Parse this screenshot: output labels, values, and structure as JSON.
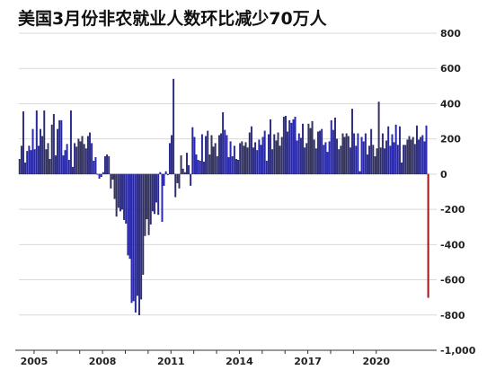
{
  "chart_data": {
    "type": "bar",
    "title": "美国3月份非农就业人数环比减少70万人",
    "xlabel": "",
    "ylabel": "",
    "ylim": [
      -1000,
      800
    ],
    "y_ticks": [
      800,
      600,
      400,
      200,
      0,
      -200,
      -400,
      -600,
      -800,
      -1000
    ],
    "y_tick_labels": [
      "800",
      "600",
      "400",
      "200",
      "0",
      "-200",
      "-400",
      "-600",
      "-800",
      "-1,000"
    ],
    "x_tick_labels": [
      "2005",
      "2008",
      "2011",
      "2014",
      "2017",
      "2020"
    ],
    "x_tick_years": [
      2005,
      2008,
      2011,
      2014,
      2017,
      2020
    ],
    "x_start": "2004-05",
    "grid": true,
    "colors": {
      "positive": "#2b2bb0",
      "highlight": "#b01818",
      "grid": "#d9d9d9",
      "axis": "#333333"
    },
    "series": [
      {
        "values": [
          85,
          160,
          355,
          65,
          130,
          160,
          135,
          255,
          140,
          360,
          160,
          255,
          215,
          360,
          140,
          175,
          85,
          280,
          340,
          105,
          255,
          305,
          305,
          105,
          135,
          170,
          80,
          360,
          40,
          175,
          155,
          200,
          185,
          215,
          170,
          145,
          215,
          235,
          175,
          75,
          95,
          0,
          -25,
          -15,
          10,
          100,
          110,
          100,
          -80,
          -30,
          -140,
          -240,
          -190,
          -210,
          -200,
          -260,
          -280,
          -460,
          -480,
          -730,
          -720,
          -785,
          -690,
          -800,
          -710,
          -570,
          -350,
          -255,
          -345,
          -285,
          -210,
          -225,
          -160,
          -230,
          10,
          -270,
          -65,
          15,
          -5,
          175,
          220,
          540,
          -130,
          -50,
          -80,
          105,
          30,
          10,
          120,
          50,
          -65,
          265,
          210,
          110,
          80,
          75,
          225,
          70,
          215,
          245,
          110,
          220,
          155,
          175,
          100,
          220,
          230,
          350,
          250,
          220,
          95,
          185,
          100,
          160,
          85,
          80,
          175,
          185,
          160,
          180,
          150,
          235,
          270,
          150,
          180,
          135,
          195,
          165,
          210,
          245,
          75,
          225,
          310,
          140,
          225,
          190,
          235,
          160,
          210,
          325,
          330,
          240,
          305,
          290,
          310,
          325,
          190,
          230,
          205,
          285,
          150,
          175,
          285,
          260,
          300,
          195,
          145,
          240,
          245,
          255,
          165,
          180,
          125,
          185,
          305,
          250,
          320,
          200,
          140,
          160,
          230,
          210,
          230,
          215,
          150,
          370,
          230,
          160,
          230,
          15,
          210,
          185,
          230,
          110,
          160,
          255,
          165,
          100,
          145,
          410,
          150,
          230,
          145,
          190,
          270,
          160,
          225,
          180,
          280,
          165,
          270,
          65,
          165,
          165,
          195,
          215,
          195,
          210,
          170,
          275,
          195,
          210,
          220,
          185,
          275,
          -701
        ],
        "highlight_last": true
      }
    ]
  }
}
